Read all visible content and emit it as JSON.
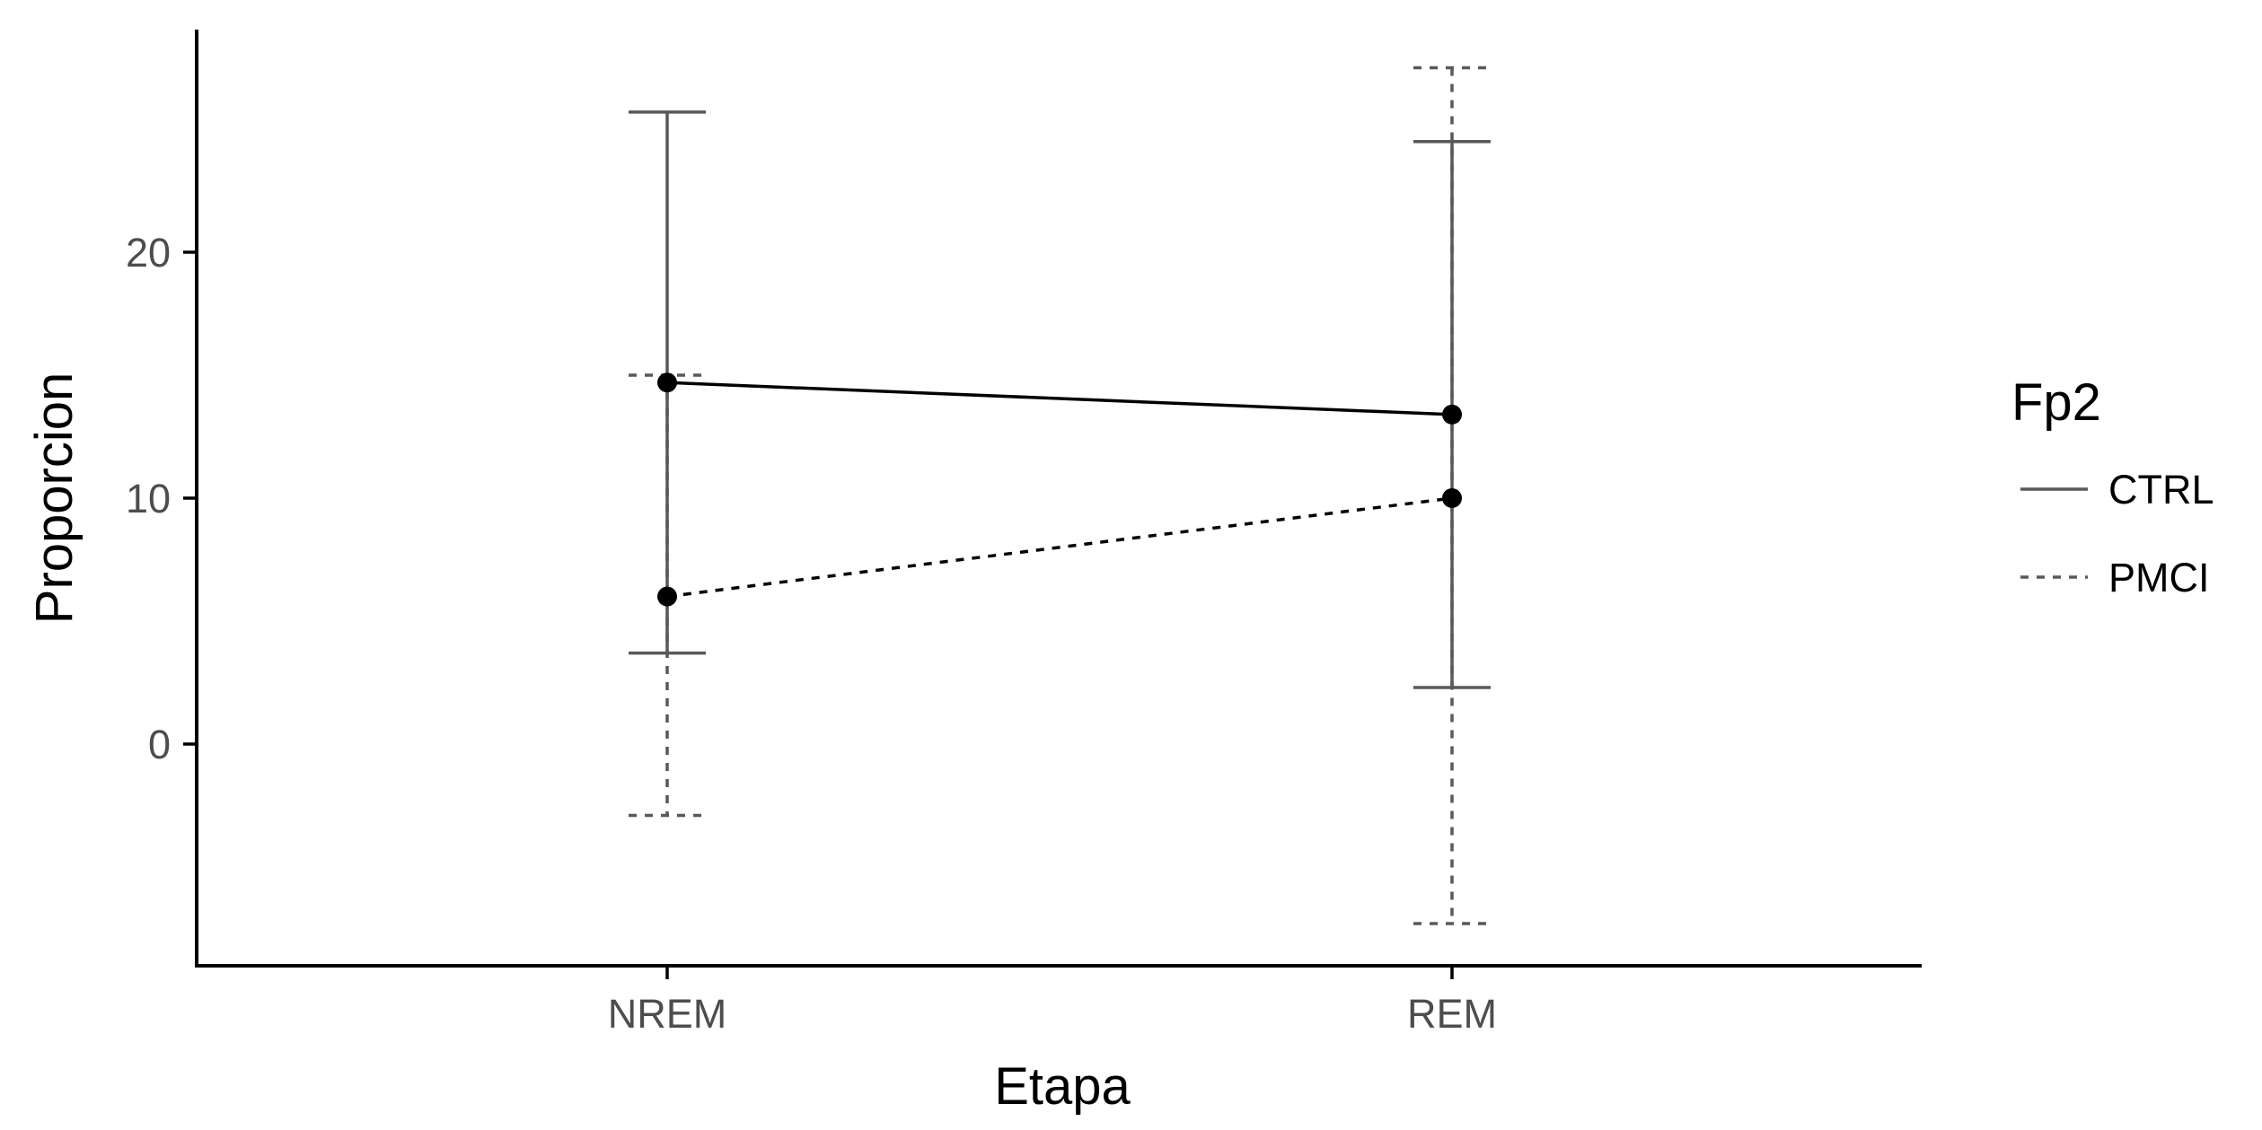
{
  "chart_data": {
    "type": "line",
    "title": "",
    "xlabel": "Etapa",
    "ylabel": "Proporcion",
    "categories": [
      "NREM",
      "REM"
    ],
    "ylim": [
      -9,
      29
    ],
    "yticks": [
      0,
      10,
      20
    ],
    "grid": false,
    "legend_position": "right",
    "legend_title": "Fp2",
    "series": [
      {
        "name": "CTRL",
        "line_style": "solid",
        "values": [
          14.7,
          13.4
        ],
        "error_lower": [
          3.7,
          2.3
        ],
        "error_upper": [
          25.7,
          24.5
        ]
      },
      {
        "name": "PMCI",
        "line_style": "dotted",
        "values": [
          6.0,
          10.0
        ],
        "error_lower": [
          -2.9,
          -7.3
        ],
        "error_upper": [
          15.0,
          27.5
        ]
      }
    ],
    "colors": {
      "line": "#000000",
      "errorbar": "#595959",
      "axis": "#000000",
      "tick_text": "#4d4d4d"
    }
  }
}
